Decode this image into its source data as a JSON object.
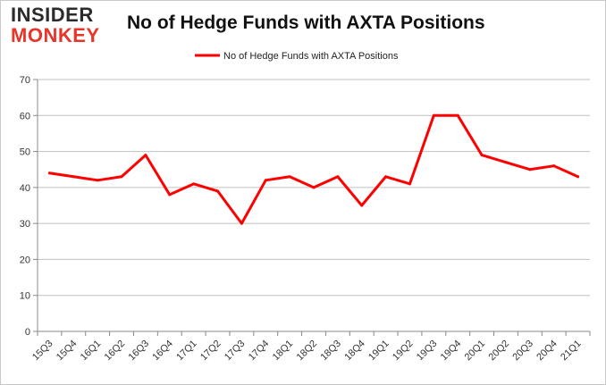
{
  "logo": {
    "line1": "INSIDER",
    "line2": "MONKEY"
  },
  "header": {
    "title": "No of Hedge Funds with AXTA Positions"
  },
  "colors": {
    "series": "#ff0000",
    "grid": "#c0c0c0",
    "axis": "#888888",
    "logo_accent": "#e8352a"
  },
  "chart_data": {
    "type": "line",
    "title": "No of Hedge Funds with AXTA Positions",
    "xlabel": "",
    "ylabel": "",
    "ylim": [
      0,
      70
    ],
    "yticks": [
      0,
      10,
      20,
      30,
      40,
      50,
      60,
      70
    ],
    "grid": true,
    "legend_position": "top-center",
    "categories": [
      "15Q3",
      "15Q4",
      "16Q1",
      "16Q2",
      "16Q3",
      "16Q4",
      "17Q1",
      "17Q2",
      "17Q3",
      "17Q4",
      "18Q1",
      "18Q2",
      "18Q3",
      "18Q4",
      "19Q1",
      "19Q2",
      "19Q3",
      "19Q4",
      "20Q1",
      "20Q2",
      "20Q3",
      "20Q4",
      "21Q1"
    ],
    "series": [
      {
        "name": "No of Hedge Funds with AXTA Positions",
        "values": [
          44,
          43,
          42,
          43,
          49,
          38,
          41,
          39,
          30,
          42,
          43,
          40,
          43,
          35,
          43,
          41,
          60,
          60,
          49,
          47,
          45,
          46,
          43
        ]
      }
    ]
  }
}
